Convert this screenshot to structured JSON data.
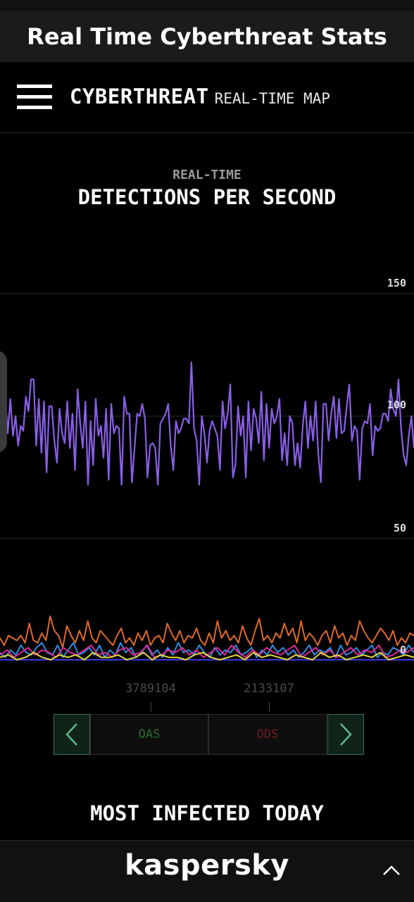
{
  "app": {
    "title": "Real Time Cyberthreat Stats"
  },
  "nav": {
    "brand_main": "CYBERTHREAT",
    "brand_sub": "REAL-TIME MAP"
  },
  "section": {
    "subtitle": "REAL-TIME",
    "title": "DETECTIONS PER SECOND"
  },
  "chart_data": {
    "type": "line",
    "y_ticks": [
      "150",
      "100",
      "50",
      "0"
    ],
    "ylim": [
      0,
      150
    ],
    "grid": true,
    "series": [
      {
        "color": "#8a5ee8",
        "values": [
          97,
          103,
          108,
          93,
          107,
          92,
          100,
          88,
          96,
          94,
          108,
          102,
          115,
          115,
          88,
          107,
          85,
          106,
          77,
          104,
          104,
          90,
          81,
          103,
          93,
          89,
          106,
          87,
          101,
          78,
          111,
          97,
          87,
          106,
          72,
          98,
          80,
          107,
          92,
          96,
          83,
          103,
          74,
          105,
          93,
          96,
          95,
          72,
          108,
          101,
          101,
          73,
          87,
          101,
          100,
          105,
          99,
          75,
          88,
          89,
          87,
          72,
          97,
          99,
          101,
          105,
          88,
          78,
          98,
          93,
          95,
          99,
          99,
          97,
          122,
          95,
          90,
          72,
          100,
          93,
          81,
          94,
          98,
          95,
          92,
          78,
          106,
          95,
          101,
          113,
          75,
          80,
          104,
          92,
          100,
          75,
          106,
          86,
          103,
          99,
          89,
          110,
          82,
          105,
          87,
          103,
          97,
          100,
          107,
          82,
          93,
          80,
          100,
          97,
          80,
          89,
          79,
          96,
          106,
          87,
          100,
          90,
          106,
          85,
          73,
          105,
          105,
          90,
          101,
          108,
          91,
          107,
          93,
          94,
          104,
          113,
          90,
          96,
          94,
          74,
          95,
          98,
          97,
          105,
          84,
          96,
          94,
          95,
          101,
          101,
          98,
          111,
          103,
          100,
          115,
          95,
          84,
          80,
          92,
          100,
          87
        ]
      },
      {
        "color": "#e06a2a",
        "values": [
          9,
          6,
          10,
          9,
          8,
          10,
          7,
          15,
          8,
          7,
          11,
          8,
          18,
          12,
          10,
          5,
          14,
          10,
          7,
          12,
          8,
          16,
          9,
          7,
          12,
          10,
          8,
          6,
          10,
          13,
          7,
          9,
          6,
          11,
          8,
          12,
          6,
          9,
          10,
          7,
          15,
          11,
          8,
          12,
          7,
          10,
          9,
          13,
          8,
          6,
          11,
          7,
          16,
          9,
          12,
          8,
          10,
          7,
          14,
          9,
          6,
          12,
          17,
          8,
          10,
          7,
          11,
          9,
          15,
          10,
          13,
          7,
          16,
          8,
          11,
          9,
          6,
          10,
          12,
          7,
          14,
          9,
          11,
          6,
          10,
          8,
          16,
          12,
          9,
          7,
          10,
          13,
          11,
          8,
          12,
          6,
          9,
          7,
          11,
          10
        ]
      },
      {
        "color": "#2f8fe3",
        "values": [
          3,
          1,
          4,
          2,
          6,
          3,
          2,
          5,
          7,
          3,
          2,
          6,
          1,
          4,
          7,
          2,
          3,
          5,
          2,
          6,
          1,
          4,
          2,
          7,
          3,
          5,
          1,
          3,
          6,
          2,
          4,
          1,
          5,
          2,
          7,
          3,
          4,
          2,
          6,
          3,
          1,
          5,
          2,
          4,
          3,
          6,
          2,
          3,
          5,
          1,
          4,
          2,
          6,
          3,
          5,
          2,
          4,
          1,
          3,
          6,
          2,
          4,
          3,
          5,
          1,
          6,
          2,
          3,
          5,
          2,
          4,
          6,
          1,
          3,
          2,
          5,
          4,
          2,
          6,
          3
        ]
      },
      {
        "color": "#e0269a",
        "values": [
          2,
          4,
          1,
          3,
          5,
          2,
          4,
          3,
          1,
          5,
          3,
          2,
          4,
          6,
          2,
          3,
          1,
          4,
          5,
          2,
          3,
          6,
          1,
          2,
          4,
          3,
          5,
          2,
          4,
          1,
          3,
          5,
          2,
          6,
          3,
          1,
          4,
          2,
          5,
          3,
          2,
          4,
          6,
          1,
          3,
          5,
          2,
          4,
          1,
          3,
          5,
          2,
          4,
          3,
          6,
          1,
          2,
          4,
          3,
          5
        ]
      },
      {
        "color": "#e8d93a",
        "values": [
          1,
          2,
          0,
          1,
          3,
          1,
          0,
          2,
          1,
          2,
          0,
          3,
          1,
          1,
          2,
          0,
          1,
          3,
          0,
          2,
          1,
          1,
          0,
          2,
          3,
          1,
          0,
          1,
          2,
          0,
          3,
          1,
          2,
          1,
          0,
          2,
          1,
          0,
          3,
          1,
          2,
          0,
          1,
          2,
          1,
          3,
          0,
          1,
          2,
          1
        ]
      }
    ]
  },
  "counters": {
    "oas_count": "3789104",
    "ods_count": "2133107"
  },
  "switcher": {
    "oas_label": "OAS",
    "ods_label": "ODS",
    "prev_icon": "chevron-left-icon",
    "next_icon": "chevron-right-icon"
  },
  "infected": {
    "title": "MOST INFECTED TODAY"
  },
  "footer": {
    "logo": "kaspersky",
    "expand_icon": "chevron-up-icon"
  }
}
